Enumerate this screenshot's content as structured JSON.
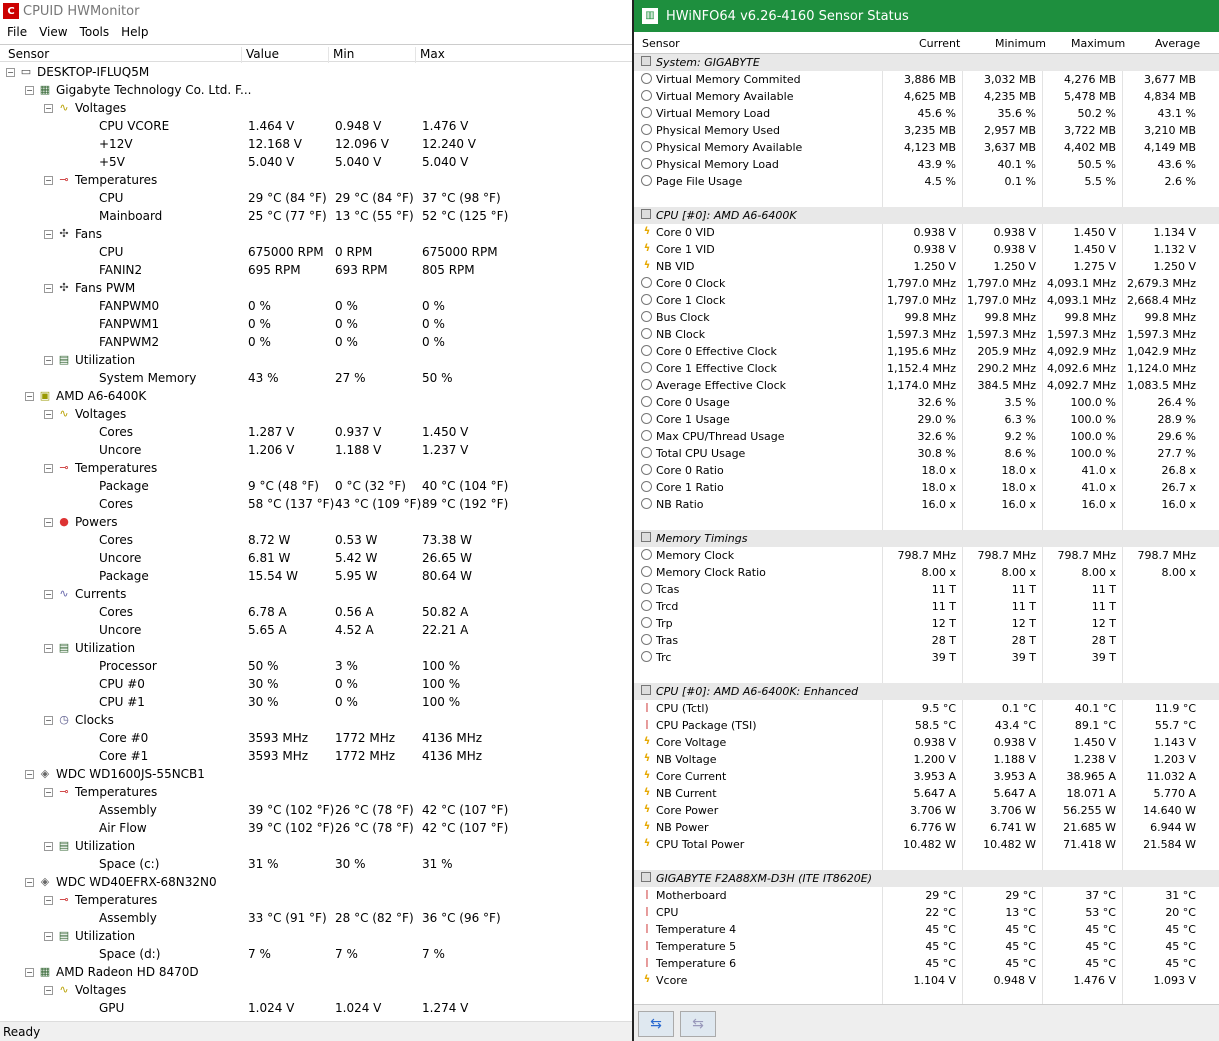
{
  "hwmonitor": {
    "title": "CPUID HWMonitor",
    "menu": [
      "File",
      "View",
      "Tools",
      "Help"
    ],
    "columns": [
      "Sensor",
      "Value",
      "Min",
      "Max"
    ],
    "status": "Ready",
    "rows": [
      {
        "d": 0,
        "name": "DESKTOP-IFLUQ5M",
        "icon": "computer-icon",
        "exp": true
      },
      {
        "d": 1,
        "name": "Gigabyte Technology Co. Ltd. F...",
        "icon": "motherboard-icon",
        "exp": true
      },
      {
        "d": 2,
        "name": "Voltages",
        "icon": "voltage-icon",
        "exp": true
      },
      {
        "d": 3,
        "name": "CPU VCORE",
        "v": "1.464 V",
        "mn": "0.948 V",
        "mx": "1.476 V"
      },
      {
        "d": 3,
        "name": "+12V",
        "v": "12.168 V",
        "mn": "12.096 V",
        "mx": "12.240 V"
      },
      {
        "d": 3,
        "name": "+5V",
        "v": "5.040 V",
        "mn": "5.040 V",
        "mx": "5.040 V"
      },
      {
        "d": 2,
        "name": "Temperatures",
        "icon": "thermometer-icon",
        "exp": true
      },
      {
        "d": 3,
        "name": "CPU",
        "v": "29 °C  (84 °F)",
        "mn": "29 °C  (84 °F)",
        "mx": "37 °C  (98 °F)"
      },
      {
        "d": 3,
        "name": "Mainboard",
        "v": "25 °C  (77 °F)",
        "mn": "13 °C  (55 °F)",
        "mx": "52 °C  (125 °F)"
      },
      {
        "d": 2,
        "name": "Fans",
        "icon": "fan-icon",
        "exp": true
      },
      {
        "d": 3,
        "name": "CPU",
        "v": "675000 RPM",
        "mn": "0 RPM",
        "mx": "675000 RPM"
      },
      {
        "d": 3,
        "name": "FANIN2",
        "v": "695 RPM",
        "mn": "693 RPM",
        "mx": "805 RPM"
      },
      {
        "d": 2,
        "name": "Fans PWM",
        "icon": "fan-icon",
        "exp": true
      },
      {
        "d": 3,
        "name": "FANPWM0",
        "v": "0 %",
        "mn": "0 %",
        "mx": "0 %"
      },
      {
        "d": 3,
        "name": "FANPWM1",
        "v": "0 %",
        "mn": "0 %",
        "mx": "0 %"
      },
      {
        "d": 3,
        "name": "FANPWM2",
        "v": "0 %",
        "mn": "0 %",
        "mx": "0 %"
      },
      {
        "d": 2,
        "name": "Utilization",
        "icon": "utilization-icon",
        "exp": true
      },
      {
        "d": 3,
        "name": "System Memory",
        "v": "43 %",
        "mn": "27 %",
        "mx": "50 %"
      },
      {
        "d": 1,
        "name": "AMD A6-6400K",
        "icon": "cpu-icon",
        "exp": true
      },
      {
        "d": 2,
        "name": "Voltages",
        "icon": "voltage-icon",
        "exp": true
      },
      {
        "d": 3,
        "name": "Cores",
        "v": "1.287 V",
        "mn": "0.937 V",
        "mx": "1.450 V"
      },
      {
        "d": 3,
        "name": "Uncore",
        "v": "1.206 V",
        "mn": "1.188 V",
        "mx": "1.237 V"
      },
      {
        "d": 2,
        "name": "Temperatures",
        "icon": "thermometer-icon",
        "exp": true
      },
      {
        "d": 3,
        "name": "Package",
        "v": "9 °C  (48 °F)",
        "mn": "0 °C  (32 °F)",
        "mx": "40 °C  (104 °F)"
      },
      {
        "d": 3,
        "name": "Cores",
        "v": "58 °C  (137 °F)",
        "mn": "43 °C  (109 °F)",
        "mx": "89 °C  (192 °F)"
      },
      {
        "d": 2,
        "name": "Powers",
        "icon": "power-icon",
        "exp": true
      },
      {
        "d": 3,
        "name": "Cores",
        "v": "8.72 W",
        "mn": "0.53 W",
        "mx": "73.38 W"
      },
      {
        "d": 3,
        "name": "Uncore",
        "v": "6.81 W",
        "mn": "5.42 W",
        "mx": "26.65 W"
      },
      {
        "d": 3,
        "name": "Package",
        "v": "15.54 W",
        "mn": "5.95 W",
        "mx": "80.64 W"
      },
      {
        "d": 2,
        "name": "Currents",
        "icon": "current-icon",
        "exp": true
      },
      {
        "d": 3,
        "name": "Cores",
        "v": "6.78 A",
        "mn": "0.56 A",
        "mx": "50.82 A"
      },
      {
        "d": 3,
        "name": "Uncore",
        "v": "5.65 A",
        "mn": "4.52 A",
        "mx": "22.21 A"
      },
      {
        "d": 2,
        "name": "Utilization",
        "icon": "utilization-icon",
        "exp": true
      },
      {
        "d": 3,
        "name": "Processor",
        "v": "50 %",
        "mn": "3 %",
        "mx": "100 %"
      },
      {
        "d": 3,
        "name": "CPU #0",
        "v": "30 %",
        "mn": "0 %",
        "mx": "100 %"
      },
      {
        "d": 3,
        "name": "CPU #1",
        "v": "30 %",
        "mn": "0 %",
        "mx": "100 %"
      },
      {
        "d": 2,
        "name": "Clocks",
        "icon": "clock-icon",
        "exp": true
      },
      {
        "d": 3,
        "name": "Core #0",
        "v": "3593 MHz",
        "mn": "1772 MHz",
        "mx": "4136 MHz"
      },
      {
        "d": 3,
        "name": "Core #1",
        "v": "3593 MHz",
        "mn": "1772 MHz",
        "mx": "4136 MHz"
      },
      {
        "d": 1,
        "name": "WDC WD1600JS-55NCB1",
        "icon": "disk-icon",
        "exp": true
      },
      {
        "d": 2,
        "name": "Temperatures",
        "icon": "thermometer-icon",
        "exp": true
      },
      {
        "d": 3,
        "name": "Assembly",
        "v": "39 °C  (102 °F)",
        "mn": "26 °C  (78 °F)",
        "mx": "42 °C  (107 °F)"
      },
      {
        "d": 3,
        "name": "Air Flow",
        "v": "39 °C  (102 °F)",
        "mn": "26 °C  (78 °F)",
        "mx": "42 °C  (107 °F)"
      },
      {
        "d": 2,
        "name": "Utilization",
        "icon": "utilization-icon",
        "exp": true
      },
      {
        "d": 3,
        "name": "Space (c:)",
        "v": "31 %",
        "mn": "30 %",
        "mx": "31 %"
      },
      {
        "d": 1,
        "name": "WDC WD40EFRX-68N32N0",
        "icon": "disk-icon",
        "exp": true
      },
      {
        "d": 2,
        "name": "Temperatures",
        "icon": "thermometer-icon",
        "exp": true
      },
      {
        "d": 3,
        "name": "Assembly",
        "v": "33 °C  (91 °F)",
        "mn": "28 °C  (82 °F)",
        "mx": "36 °C  (96 °F)"
      },
      {
        "d": 2,
        "name": "Utilization",
        "icon": "utilization-icon",
        "exp": true
      },
      {
        "d": 3,
        "name": "Space (d:)",
        "v": "7 %",
        "mn": "7 %",
        "mx": "7 %"
      },
      {
        "d": 1,
        "name": "AMD Radeon HD 8470D",
        "icon": "gpu-icon",
        "exp": true
      },
      {
        "d": 2,
        "name": "Voltages",
        "icon": "voltage-icon",
        "exp": true
      },
      {
        "d": 3,
        "name": "GPU",
        "v": "1.024 V",
        "mn": "1.024 V",
        "mx": "1.274 V"
      }
    ]
  },
  "hwinfo": {
    "title": "HWiNFO64 v6.26-4160 Sensor Status",
    "columns": [
      "Sensor",
      "Current",
      "Minimum",
      "Maximum",
      "Average"
    ],
    "rows": [
      {
        "sec": true,
        "name": "System: GIGABYTE"
      },
      {
        "icon": "clock",
        "name": "Virtual Memory Commited",
        "c": "3,886 MB",
        "mi": "3,032 MB",
        "ma": "4,276 MB",
        "av": "3,677 MB"
      },
      {
        "icon": "clock",
        "name": "Virtual Memory Available",
        "c": "4,625 MB",
        "mi": "4,235 MB",
        "ma": "5,478 MB",
        "av": "4,834 MB"
      },
      {
        "icon": "clock",
        "name": "Virtual Memory Load",
        "c": "45.6 %",
        "mi": "35.6 %",
        "ma": "50.2 %",
        "av": "43.1 %"
      },
      {
        "icon": "clock",
        "name": "Physical Memory Used",
        "c": "3,235 MB",
        "mi": "2,957 MB",
        "ma": "3,722 MB",
        "av": "3,210 MB"
      },
      {
        "icon": "clock",
        "name": "Physical Memory Available",
        "c": "4,123 MB",
        "mi": "3,637 MB",
        "ma": "4,402 MB",
        "av": "4,149 MB"
      },
      {
        "icon": "clock",
        "name": "Physical Memory Load",
        "c": "43.9 %",
        "mi": "40.1 %",
        "ma": "50.5 %",
        "av": "43.6 %"
      },
      {
        "icon": "clock",
        "name": "Page File Usage",
        "c": "4.5 %",
        "mi": "0.1 %",
        "ma": "5.5 %",
        "av": "2.6 %"
      },
      {
        "blank": true
      },
      {
        "sec": true,
        "name": "CPU [#0]: AMD A6-6400K"
      },
      {
        "icon": "bolt",
        "name": "Core 0 VID",
        "c": "0.938 V",
        "mi": "0.938 V",
        "ma": "1.450 V",
        "av": "1.134 V"
      },
      {
        "icon": "bolt",
        "name": "Core 1 VID",
        "c": "0.938 V",
        "mi": "0.938 V",
        "ma": "1.450 V",
        "av": "1.132 V"
      },
      {
        "icon": "bolt",
        "name": "NB VID",
        "c": "1.250 V",
        "mi": "1.250 V",
        "ma": "1.275 V",
        "av": "1.250 V"
      },
      {
        "icon": "clock",
        "name": "Core 0 Clock",
        "c": "1,797.0 MHz",
        "mi": "1,797.0 MHz",
        "ma": "4,093.1 MHz",
        "av": "2,679.3 MHz"
      },
      {
        "icon": "clock",
        "name": "Core 1 Clock",
        "c": "1,797.0 MHz",
        "mi": "1,797.0 MHz",
        "ma": "4,093.1 MHz",
        "av": "2,668.4 MHz"
      },
      {
        "icon": "clock",
        "name": "Bus Clock",
        "c": "99.8 MHz",
        "mi": "99.8 MHz",
        "ma": "99.8 MHz",
        "av": "99.8 MHz"
      },
      {
        "icon": "clock",
        "name": "NB Clock",
        "c": "1,597.3 MHz",
        "mi": "1,597.3 MHz",
        "ma": "1,597.3 MHz",
        "av": "1,597.3 MHz"
      },
      {
        "icon": "clock",
        "name": "Core 0 Effective Clock",
        "c": "1,195.6 MHz",
        "mi": "205.9 MHz",
        "ma": "4,092.9 MHz",
        "av": "1,042.9 MHz"
      },
      {
        "icon": "clock",
        "name": "Core 1 Effective Clock",
        "c": "1,152.4 MHz",
        "mi": "290.2 MHz",
        "ma": "4,092.6 MHz",
        "av": "1,124.0 MHz"
      },
      {
        "icon": "clock",
        "name": "Average Effective Clock",
        "c": "1,174.0 MHz",
        "mi": "384.5 MHz",
        "ma": "4,092.7 MHz",
        "av": "1,083.5 MHz"
      },
      {
        "icon": "clock",
        "name": "Core 0 Usage",
        "c": "32.6 %",
        "mi": "3.5 %",
        "ma": "100.0 %",
        "av": "26.4 %"
      },
      {
        "icon": "clock",
        "name": "Core 1 Usage",
        "c": "29.0 %",
        "mi": "6.3 %",
        "ma": "100.0 %",
        "av": "28.9 %"
      },
      {
        "icon": "clock",
        "name": "Max CPU/Thread Usage",
        "c": "32.6 %",
        "mi": "9.2 %",
        "ma": "100.0 %",
        "av": "29.6 %"
      },
      {
        "icon": "clock",
        "name": "Total CPU Usage",
        "c": "30.8 %",
        "mi": "8.6 %",
        "ma": "100.0 %",
        "av": "27.7 %"
      },
      {
        "icon": "clock",
        "name": "Core 0 Ratio",
        "c": "18.0 x",
        "mi": "18.0 x",
        "ma": "41.0 x",
        "av": "26.8 x"
      },
      {
        "icon": "clock",
        "name": "Core 1 Ratio",
        "c": "18.0 x",
        "mi": "18.0 x",
        "ma": "41.0 x",
        "av": "26.7 x"
      },
      {
        "icon": "clock",
        "name": "NB Ratio",
        "c": "16.0 x",
        "mi": "16.0 x",
        "ma": "16.0 x",
        "av": "16.0 x"
      },
      {
        "blank": true
      },
      {
        "sec": true,
        "name": "Memory Timings"
      },
      {
        "icon": "clock",
        "name": "Memory Clock",
        "c": "798.7 MHz",
        "mi": "798.7 MHz",
        "ma": "798.7 MHz",
        "av": "798.7 MHz"
      },
      {
        "icon": "clock",
        "name": "Memory Clock Ratio",
        "c": "8.00 x",
        "mi": "8.00 x",
        "ma": "8.00 x",
        "av": "8.00 x"
      },
      {
        "icon": "clock",
        "name": "Tcas",
        "c": "11 T",
        "mi": "11 T",
        "ma": "11 T",
        "av": ""
      },
      {
        "icon": "clock",
        "name": "Trcd",
        "c": "11 T",
        "mi": "11 T",
        "ma": "11 T",
        "av": ""
      },
      {
        "icon": "clock",
        "name": "Trp",
        "c": "12 T",
        "mi": "12 T",
        "ma": "12 T",
        "av": ""
      },
      {
        "icon": "clock",
        "name": "Tras",
        "c": "28 T",
        "mi": "28 T",
        "ma": "28 T",
        "av": ""
      },
      {
        "icon": "clock",
        "name": "Trc",
        "c": "39 T",
        "mi": "39 T",
        "ma": "39 T",
        "av": ""
      },
      {
        "blank": true
      },
      {
        "sec": true,
        "name": "CPU [#0]: AMD A6-6400K: Enhanced"
      },
      {
        "icon": "therm",
        "name": "CPU (Tctl)",
        "c": "9.5 °C",
        "mi": "0.1 °C",
        "ma": "40.1 °C",
        "av": "11.9 °C"
      },
      {
        "icon": "therm",
        "name": "CPU Package (TSI)",
        "c": "58.5 °C",
        "mi": "43.4 °C",
        "ma": "89.1 °C",
        "av": "55.7 °C"
      },
      {
        "icon": "bolt",
        "name": "Core Voltage",
        "c": "0.938 V",
        "mi": "0.938 V",
        "ma": "1.450 V",
        "av": "1.143 V"
      },
      {
        "icon": "bolt",
        "name": "NB Voltage",
        "c": "1.200 V",
        "mi": "1.188 V",
        "ma": "1.238 V",
        "av": "1.203 V"
      },
      {
        "icon": "bolt",
        "name": "Core Current",
        "c": "3.953 A",
        "mi": "3.953 A",
        "ma": "38.965 A",
        "av": "11.032 A"
      },
      {
        "icon": "bolt",
        "name": "NB Current",
        "c": "5.647 A",
        "mi": "5.647 A",
        "ma": "18.071 A",
        "av": "5.770 A"
      },
      {
        "icon": "bolt",
        "name": "Core Power",
        "c": "3.706 W",
        "mi": "3.706 W",
        "ma": "56.255 W",
        "av": "14.640 W"
      },
      {
        "icon": "bolt",
        "name": "NB Power",
        "c": "6.776 W",
        "mi": "6.741 W",
        "ma": "21.685 W",
        "av": "6.944 W"
      },
      {
        "icon": "bolt",
        "name": "CPU Total Power",
        "c": "10.482 W",
        "mi": "10.482 W",
        "ma": "71.418 W",
        "av": "21.584 W"
      },
      {
        "blank": true
      },
      {
        "sec": true,
        "name": "GIGABYTE F2A88XM-D3H (ITE IT8620E)"
      },
      {
        "icon": "therm",
        "name": "Motherboard",
        "c": "29 °C",
        "mi": "29 °C",
        "ma": "37 °C",
        "av": "31 °C"
      },
      {
        "icon": "therm",
        "name": "CPU",
        "c": "22 °C",
        "mi": "13 °C",
        "ma": "53 °C",
        "av": "20 °C"
      },
      {
        "icon": "therm",
        "name": "Temperature 4",
        "c": "45 °C",
        "mi": "45 °C",
        "ma": "45 °C",
        "av": "45 °C"
      },
      {
        "icon": "therm",
        "name": "Temperature 5",
        "c": "45 °C",
        "mi": "45 °C",
        "ma": "45 °C",
        "av": "45 °C"
      },
      {
        "icon": "therm",
        "name": "Temperature 6",
        "c": "45 °C",
        "mi": "45 °C",
        "ma": "45 °C",
        "av": "45 °C"
      },
      {
        "icon": "bolt",
        "name": "Vcore",
        "c": "1.104 V",
        "mi": "0.948 V",
        "ma": "1.476 V",
        "av": "1.093 V"
      }
    ]
  }
}
